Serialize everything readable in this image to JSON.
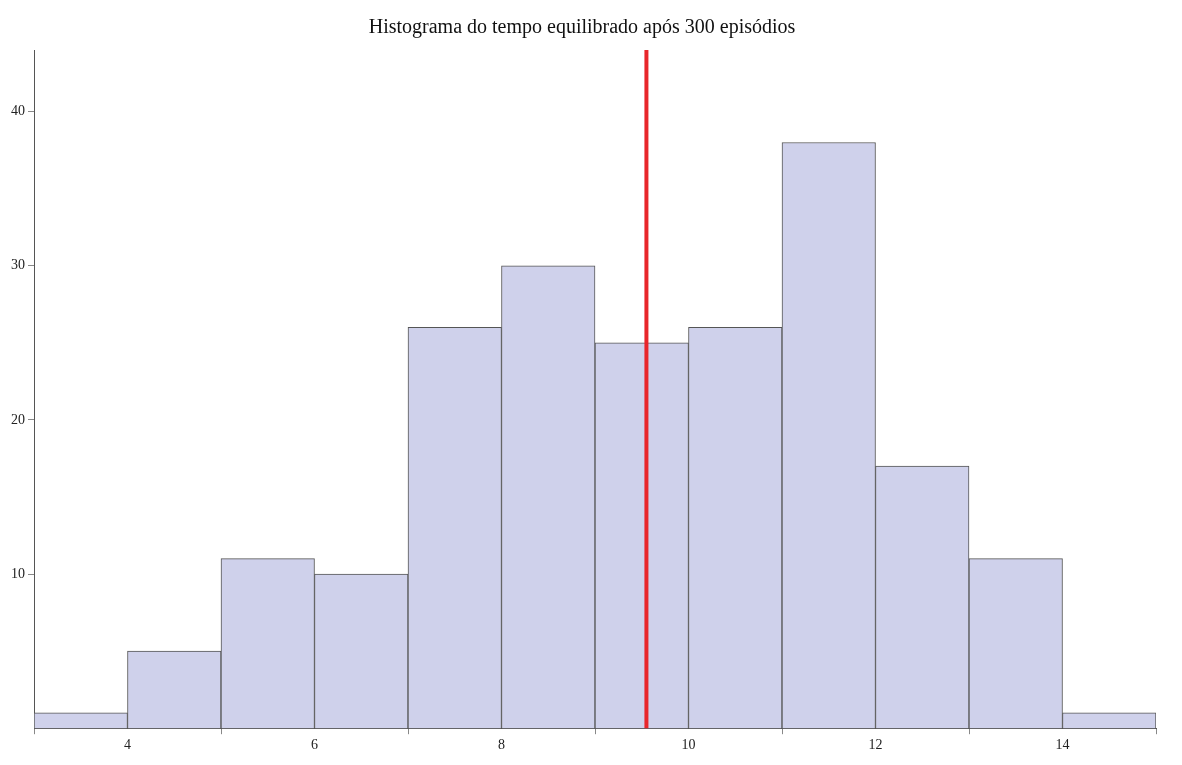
{
  "chart_data": {
    "type": "histogram",
    "title": "Histograma do tempo equilibrado após 300 episódios",
    "bins": [
      3,
      4,
      5,
      6,
      7,
      8,
      9,
      10,
      11,
      12,
      13,
      14,
      15
    ],
    "values": [
      1,
      5,
      11,
      10,
      26,
      30,
      25,
      26,
      38,
      17,
      11,
      1
    ],
    "color": "#cfd1eb",
    "xlim": [
      3,
      15
    ],
    "xticks": [
      4,
      6,
      8,
      10,
      12,
      14
    ],
    "ylim": [
      0,
      44
    ],
    "yticks": [
      10,
      20,
      30,
      40
    ],
    "ref_lines": [
      {
        "axis": "x",
        "value": 9.55,
        "color": "#e8262b"
      }
    ],
    "grid": false,
    "legend": false
  }
}
